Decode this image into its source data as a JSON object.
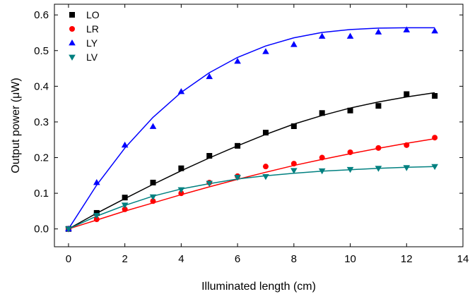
{
  "chart_data": {
    "type": "scatter",
    "title": "",
    "xlabel": "Illuminated length (cm)",
    "ylabel": "Output power (μW)",
    "xlim": [
      -0.5,
      14
    ],
    "ylim": [
      -0.05,
      0.63
    ],
    "xticks": [
      0,
      2,
      4,
      6,
      8,
      10,
      12,
      14
    ],
    "yticks": [
      0.0,
      0.1,
      0.2,
      0.3,
      0.4,
      0.5,
      0.6
    ],
    "grid": false,
    "legend_position": "top-left",
    "x": [
      0,
      1,
      2,
      3,
      4,
      5,
      6,
      7,
      8,
      9,
      10,
      11,
      12,
      13
    ],
    "series": [
      {
        "name": "LO",
        "marker": "square",
        "color": "#000000",
        "values": [
          0.0,
          0.045,
          0.088,
          0.13,
          0.17,
          0.205,
          0.233,
          0.27,
          0.288,
          0.325,
          0.332,
          0.345,
          0.378,
          0.373
        ],
        "fit": [
          0.0,
          0.044,
          0.085,
          0.125,
          0.163,
          0.199,
          0.233,
          0.265,
          0.294,
          0.318,
          0.339,
          0.356,
          0.37,
          0.382
        ]
      },
      {
        "name": "LR",
        "marker": "circle",
        "color": "#ff0000",
        "values": [
          0.0,
          0.027,
          0.055,
          0.078,
          0.1,
          0.13,
          0.148,
          0.175,
          0.183,
          0.2,
          0.215,
          0.227,
          0.235,
          0.256
        ],
        "fit": [
          0.0,
          0.025,
          0.05,
          0.073,
          0.096,
          0.118,
          0.139,
          0.159,
          0.178,
          0.195,
          0.211,
          0.226,
          0.24,
          0.253
        ]
      },
      {
        "name": "LY",
        "marker": "triangle-up",
        "color": "#0000ff",
        "values": [
          0.0,
          0.13,
          0.235,
          0.287,
          0.385,
          0.427,
          0.47,
          0.497,
          0.517,
          0.54,
          0.54,
          0.552,
          0.558,
          0.555
        ],
        "fit": [
          0.0,
          0.123,
          0.227,
          0.313,
          0.383,
          0.438,
          0.481,
          0.513,
          0.536,
          0.551,
          0.559,
          0.563,
          0.564,
          0.564
        ]
      },
      {
        "name": "LV",
        "marker": "triangle-down",
        "color": "#008080",
        "values": [
          0.0,
          0.038,
          0.067,
          0.09,
          0.11,
          0.128,
          0.145,
          0.147,
          0.164,
          0.163,
          0.167,
          0.17,
          0.172,
          0.175
        ],
        "fit": [
          0.0,
          0.036,
          0.066,
          0.092,
          0.112,
          0.127,
          0.14,
          0.149,
          0.156,
          0.162,
          0.166,
          0.17,
          0.173,
          0.175
        ]
      }
    ]
  }
}
